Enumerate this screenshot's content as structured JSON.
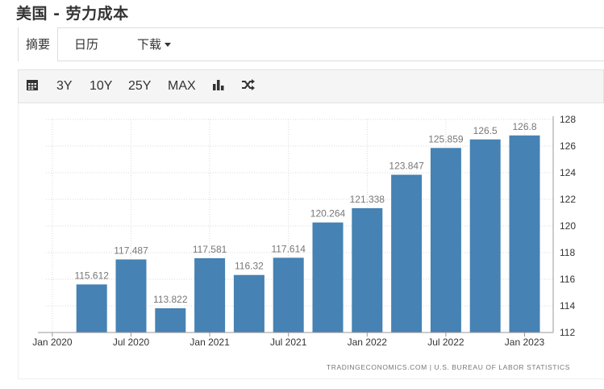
{
  "page": {
    "title": "美国 - 劳力成本"
  },
  "tabs": [
    {
      "label": "摘要",
      "active": true
    },
    {
      "label": "日历",
      "active": false
    },
    {
      "label": "下载",
      "active": false
    }
  ],
  "toolbar": {
    "icons": [
      "calendar-icon",
      "bar-chart-icon",
      "shuffle-icon"
    ],
    "ranges": [
      "3Y",
      "10Y",
      "25Y",
      "MAX"
    ]
  },
  "colors": {
    "bar": "#4682b4",
    "grid": "#d9d9d9",
    "label": "#777777"
  },
  "chart_data": {
    "type": "bar",
    "categories": [
      "Jan 2020",
      "Apr 2020",
      "Jul 2020",
      "Oct 2020",
      "Jan 2021",
      "Apr 2021",
      "Jul 2021",
      "Oct 2021",
      "Jan 2022",
      "Apr 2022",
      "Jul 2022",
      "Oct 2022",
      "Jan 2023"
    ],
    "tick_labels": [
      "Jan 2020",
      "Jul 2020",
      "Jan 2021",
      "Jul 2021",
      "Jan 2022",
      "Jul 2022",
      "Jan 2023"
    ],
    "values": [
      null,
      115.612,
      117.487,
      113.822,
      117.581,
      116.32,
      117.614,
      120.264,
      121.338,
      123.847,
      125.859,
      126.5,
      126.8
    ],
    "data_labels": [
      "",
      "115.612",
      "117.487",
      "113.822",
      "117.581",
      "116.32",
      "117.614",
      "120.264",
      "121.338",
      "123.847",
      "125.859",
      "126.5",
      "126.8"
    ],
    "yticks": [
      112,
      114,
      116,
      118,
      120,
      122,
      124,
      126,
      128
    ],
    "ylim": [
      112,
      128
    ],
    "y_axis_side": "right",
    "grid": true,
    "source": "TRADINGECONOMICS.COM | U.S. BUREAU OF LABOR STATISTICS"
  }
}
